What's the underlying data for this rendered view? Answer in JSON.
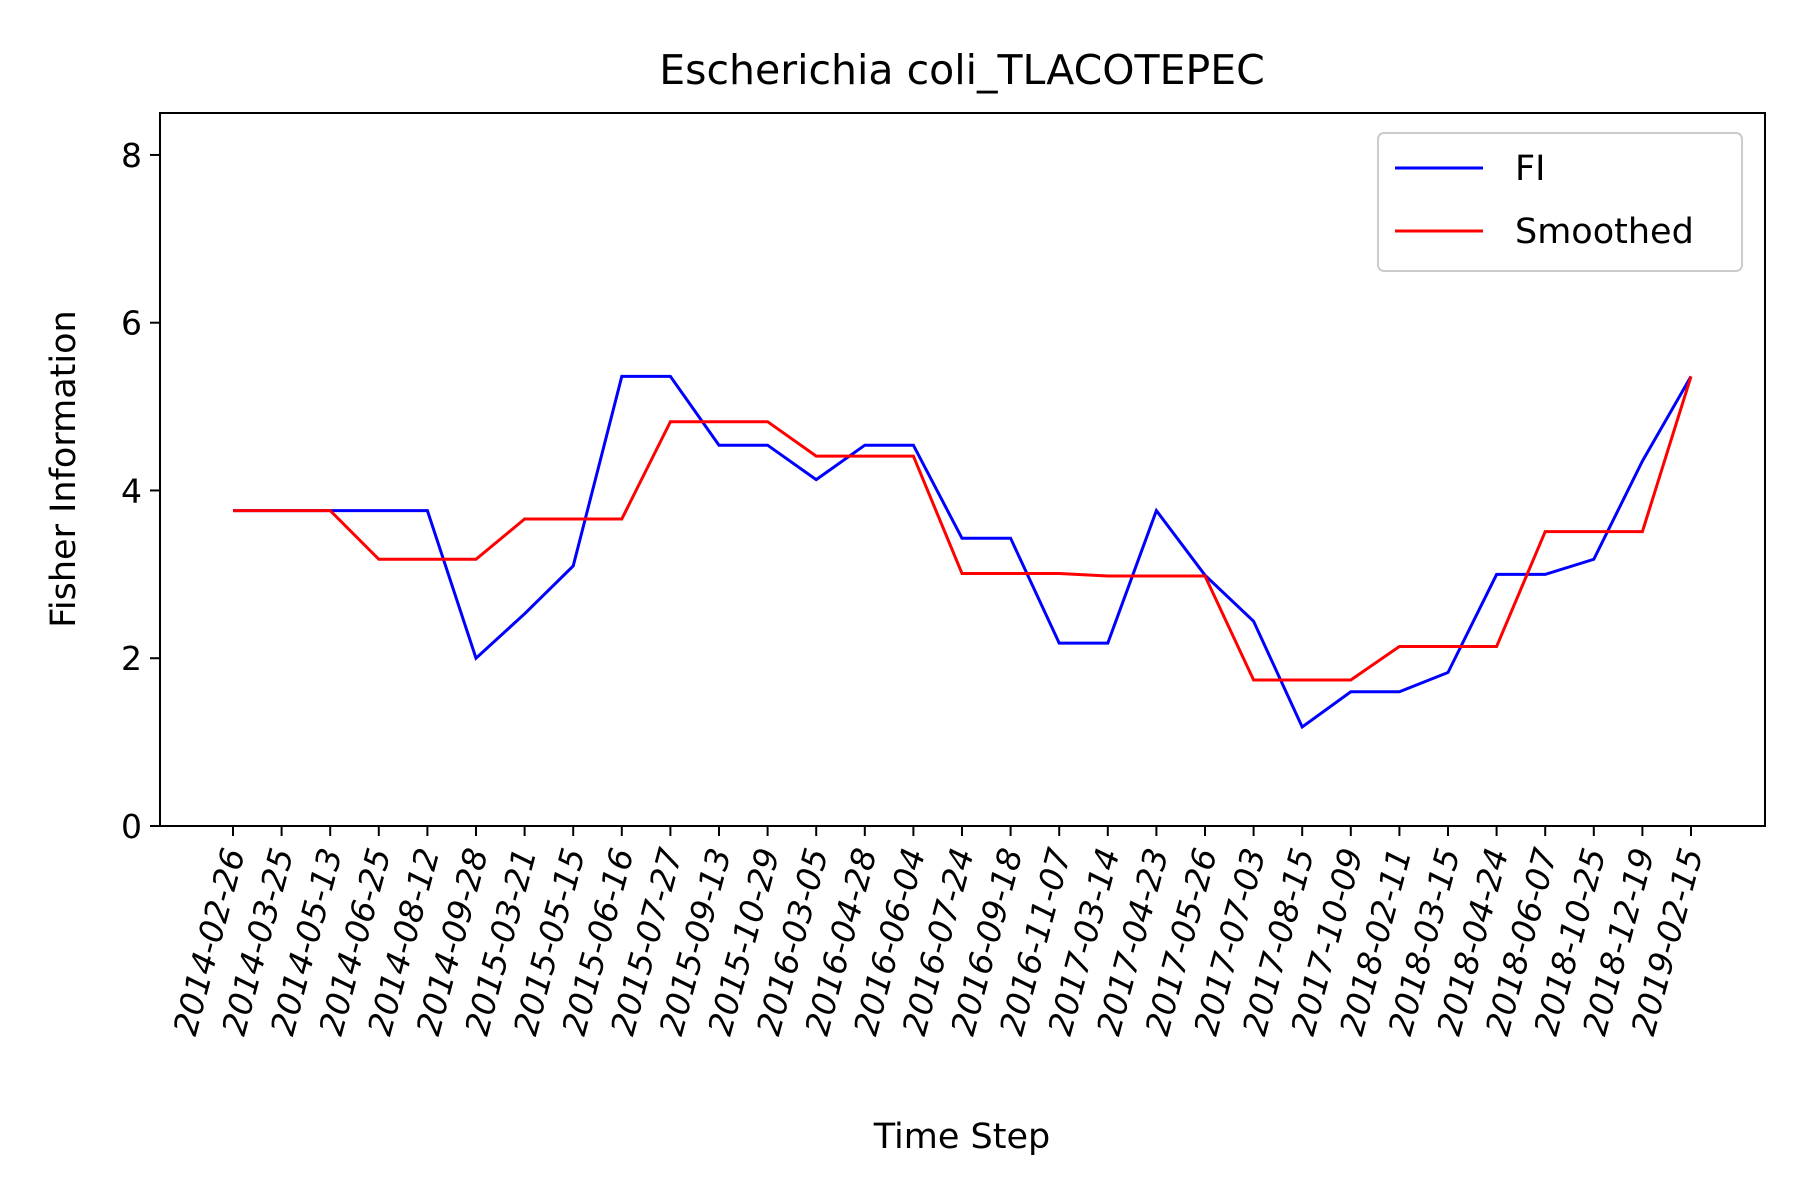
{
  "chart_data": {
    "type": "line",
    "title": "Escherichia coli_TLACOTEPEC",
    "xlabel": "Time Step",
    "ylabel": "Fisher Information",
    "ylim": [
      0,
      8.5
    ],
    "yticks": [
      0,
      2,
      4,
      6,
      8
    ],
    "grid": false,
    "legend_position": "top-right",
    "categories": [
      "2014-02-26",
      "2014-03-25",
      "2014-05-13",
      "2014-06-25",
      "2014-08-12",
      "2014-09-28",
      "2015-03-21",
      "2015-05-15",
      "2015-06-16",
      "2015-07-27",
      "2015-09-13",
      "2015-10-29",
      "2016-03-05",
      "2016-04-28",
      "2016-06-04",
      "2016-07-24",
      "2016-09-18",
      "2016-11-07",
      "2017-03-14",
      "2017-04-23",
      "2017-05-26",
      "2017-07-03",
      "2017-08-15",
      "2017-10-09",
      "2018-02-11",
      "2018-03-15",
      "2018-04-24",
      "2018-06-07",
      "2018-10-25",
      "2018-12-19",
      "2019-02-15"
    ],
    "series": [
      {
        "name": "FI",
        "color": "#0000ff",
        "values": [
          3.76,
          3.76,
          3.76,
          3.76,
          3.76,
          2.0,
          2.53,
          3.1,
          5.36,
          5.36,
          4.54,
          4.54,
          4.13,
          4.54,
          4.54,
          3.43,
          3.43,
          2.18,
          2.18,
          3.76,
          2.99,
          2.44,
          1.18,
          1.6,
          1.6,
          1.83,
          3.0,
          3.0,
          3.18,
          4.35,
          5.36
        ]
      },
      {
        "name": "Smoothed",
        "color": "#ff0000",
        "values": [
          3.76,
          3.76,
          3.76,
          3.18,
          3.18,
          3.18,
          3.66,
          3.66,
          3.66,
          4.82,
          4.82,
          4.82,
          4.41,
          4.41,
          4.41,
          3.01,
          3.01,
          3.01,
          2.98,
          2.98,
          2.98,
          1.74,
          1.74,
          1.74,
          2.14,
          2.14,
          2.14,
          3.51,
          3.51,
          3.51,
          5.36
        ]
      }
    ]
  }
}
